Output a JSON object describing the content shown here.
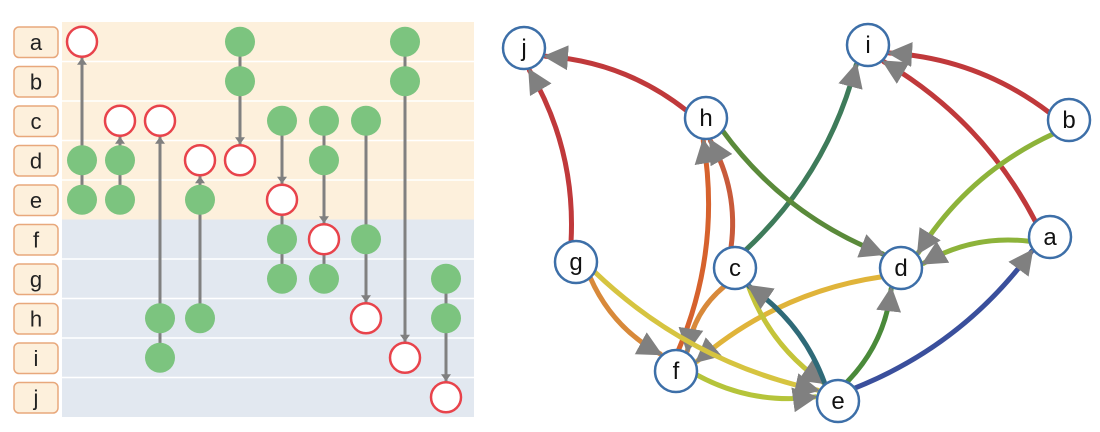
{
  "rows": [
    "a",
    "b",
    "c",
    "d",
    "e",
    "f",
    "g",
    "h",
    "i",
    "j"
  ],
  "row_groups": [
    {
      "rows": [
        "a",
        "b",
        "c",
        "d",
        "e"
      ],
      "color": "#fdf0dc"
    },
    {
      "rows": [
        "f",
        "g",
        "h",
        "i",
        "j"
      ],
      "color": "#e2e8f0"
    }
  ],
  "colors": {
    "label_bg": "#fdf0dc",
    "label_border": "#e8a87c",
    "node_fill": "#7cc47f",
    "node_open_stroke": "#e8434b",
    "link_gray": "#808080",
    "graph_node_stroke": "#3d6fa8"
  },
  "matrix_columns": [
    {
      "markers": [
        {
          "row": "a",
          "kind": "open"
        },
        {
          "row": "d",
          "kind": "filled"
        },
        {
          "row": "e",
          "kind": "filled"
        }
      ]
    },
    {
      "markers": [
        {
          "row": "c",
          "kind": "open"
        },
        {
          "row": "d",
          "kind": "filled"
        },
        {
          "row": "e",
          "kind": "filled"
        }
      ]
    },
    {
      "markers": [
        {
          "row": "c",
          "kind": "open"
        },
        {
          "row": "h",
          "kind": "filled"
        },
        {
          "row": "i",
          "kind": "filled"
        }
      ]
    },
    {
      "markers": [
        {
          "row": "d",
          "kind": "open"
        },
        {
          "row": "e",
          "kind": "filled"
        },
        {
          "row": "h",
          "kind": "filled"
        }
      ]
    },
    {
      "markers": [
        {
          "row": "a",
          "kind": "filled"
        },
        {
          "row": "b",
          "kind": "filled"
        },
        {
          "row": "d",
          "kind": "open"
        }
      ]
    },
    {
      "markers": [
        {
          "row": "c",
          "kind": "filled"
        },
        {
          "row": "e",
          "kind": "open"
        },
        {
          "row": "f",
          "kind": "filled"
        },
        {
          "row": "g",
          "kind": "filled"
        }
      ]
    },
    {
      "markers": [
        {
          "row": "c",
          "kind": "filled"
        },
        {
          "row": "d",
          "kind": "filled"
        },
        {
          "row": "f",
          "kind": "open"
        },
        {
          "row": "g",
          "kind": "filled"
        }
      ]
    },
    {
      "markers": [
        {
          "row": "c",
          "kind": "filled"
        },
        {
          "row": "f",
          "kind": "filled"
        },
        {
          "row": "h",
          "kind": "open"
        }
      ]
    },
    {
      "markers": [
        {
          "row": "a",
          "kind": "filled"
        },
        {
          "row": "b",
          "kind": "filled"
        },
        {
          "row": "i",
          "kind": "open"
        }
      ]
    },
    {
      "markers": [
        {
          "row": "g",
          "kind": "filled"
        },
        {
          "row": "h",
          "kind": "filled"
        },
        {
          "row": "j",
          "kind": "open"
        }
      ]
    }
  ],
  "graph_nodes": [
    {
      "id": "j",
      "label": "j"
    },
    {
      "id": "i",
      "label": "i"
    },
    {
      "id": "h",
      "label": "h"
    },
    {
      "id": "b",
      "label": "b"
    },
    {
      "id": "a",
      "label": "a"
    },
    {
      "id": "g",
      "label": "g"
    },
    {
      "id": "c",
      "label": "c"
    },
    {
      "id": "d",
      "label": "d"
    },
    {
      "id": "f",
      "label": "f"
    },
    {
      "id": "e",
      "label": "e"
    }
  ],
  "graph_edges": [
    {
      "from": "g",
      "to": "j",
      "color": "#c0393b"
    },
    {
      "from": "h",
      "to": "j",
      "color": "#c0393b"
    },
    {
      "from": "a",
      "to": "i",
      "color": "#c0393b"
    },
    {
      "from": "b",
      "to": "i",
      "color": "#c0393b"
    },
    {
      "from": "c",
      "to": "i",
      "color": "#3e7b5a"
    },
    {
      "from": "f",
      "to": "h",
      "color": "#d6622d"
    },
    {
      "from": "c",
      "to": "h",
      "color": "#c85a3a"
    },
    {
      "from": "h",
      "to": "d",
      "color": "#5a8a3a"
    },
    {
      "from": "b",
      "to": "d",
      "color": "#8db33a"
    },
    {
      "from": "a",
      "to": "d",
      "color": "#8db33a"
    },
    {
      "from": "e",
      "to": "a",
      "color": "#3a4f9c"
    },
    {
      "from": "d",
      "to": "f",
      "color": "#e0b43a"
    },
    {
      "from": "c",
      "to": "f",
      "color": "#d8893a"
    },
    {
      "from": "g",
      "to": "f",
      "color": "#d8893a"
    },
    {
      "from": "g",
      "to": "e",
      "color": "#d6c440"
    },
    {
      "from": "c",
      "to": "e",
      "color": "#c4c43a"
    },
    {
      "from": "f",
      "to": "e",
      "color": "#b5c43a"
    },
    {
      "from": "e",
      "to": "c",
      "color": "#2f6a78"
    },
    {
      "from": "e",
      "to": "d",
      "color": "#4a8a3a"
    }
  ]
}
